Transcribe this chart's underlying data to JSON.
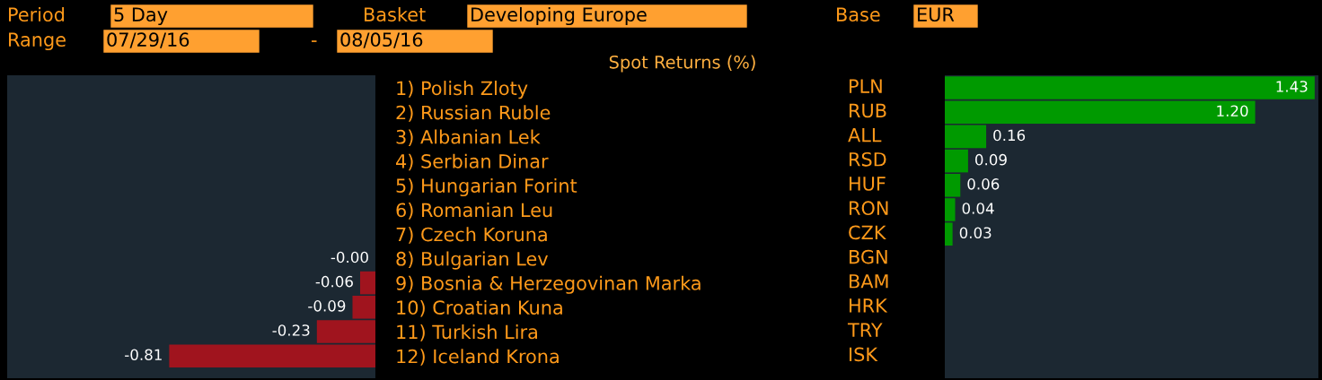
{
  "chart_data": [
    {
      "type": "bar",
      "orientation": "horizontal",
      "title": "Spot Returns (%)",
      "tick_labels": "y",
      "categories": [
        null,
        null,
        null,
        null,
        null,
        null,
        null,
        "8) Bulgarian Lev",
        "9) Bosnia & Herzegovinan Marka",
        "10) Croatian Kuna",
        "11) Turkish Lira",
        "12) Iceland Krona"
      ],
      "values": [
        null,
        null,
        null,
        null,
        null,
        null,
        null,
        -0.0,
        -0.06,
        -0.09,
        -0.23,
        -0.81
      ],
      "value_labels": [
        null,
        null,
        null,
        null,
        null,
        null,
        null,
        "-0.00",
        "-0.06",
        "-0.09",
        "-0.23",
        "-0.81"
      ],
      "colors": [
        null,
        null,
        null,
        null,
        null,
        null,
        null,
        "#a0141e",
        "#a0141e",
        "#a0141e",
        "#a0141e",
        "#a0141e"
      ],
      "annotations": [
        "Period",
        "5 Day",
        "Basket",
        "Developing Europe",
        "Base",
        "EUR",
        "Range",
        "07/29/16",
        "-",
        "08/05/16",
        "BGN",
        "BAM",
        "HRK",
        "TRY",
        "ISK"
      ]
    },
    {
      "type": "bar",
      "orientation": "horizontal",
      "tick_labels": "y",
      "categories": [
        "1) Polish Zloty",
        "2) Russian Ruble",
        "3) Albanian Lek",
        "4) Serbian Dinar",
        "5) Hungarian Forint",
        "6) Romanian Leu",
        "7) Czech Koruna",
        null,
        null,
        null,
        null,
        null
      ],
      "values": [
        1.43,
        1.2,
        0.16,
        0.09,
        0.06,
        0.04,
        0.03,
        null,
        null,
        null,
        null,
        null
      ],
      "value_labels": [
        "1.43",
        "1.20",
        "0.16",
        "0.09",
        "0.06",
        "0.04",
        "0.03",
        null,
        null,
        null,
        null,
        null
      ],
      "colors": [
        "#009a00",
        "#009a00",
        "#009a00",
        "#009a00",
        "#009a00",
        "#009a00",
        "#009a00",
        null,
        null,
        null,
        null,
        null
      ],
      "annotations": [
        "PLN",
        "RUB",
        "ALL",
        "RSD",
        "HUF",
        "RON",
        "CZK"
      ]
    }
  ]
}
